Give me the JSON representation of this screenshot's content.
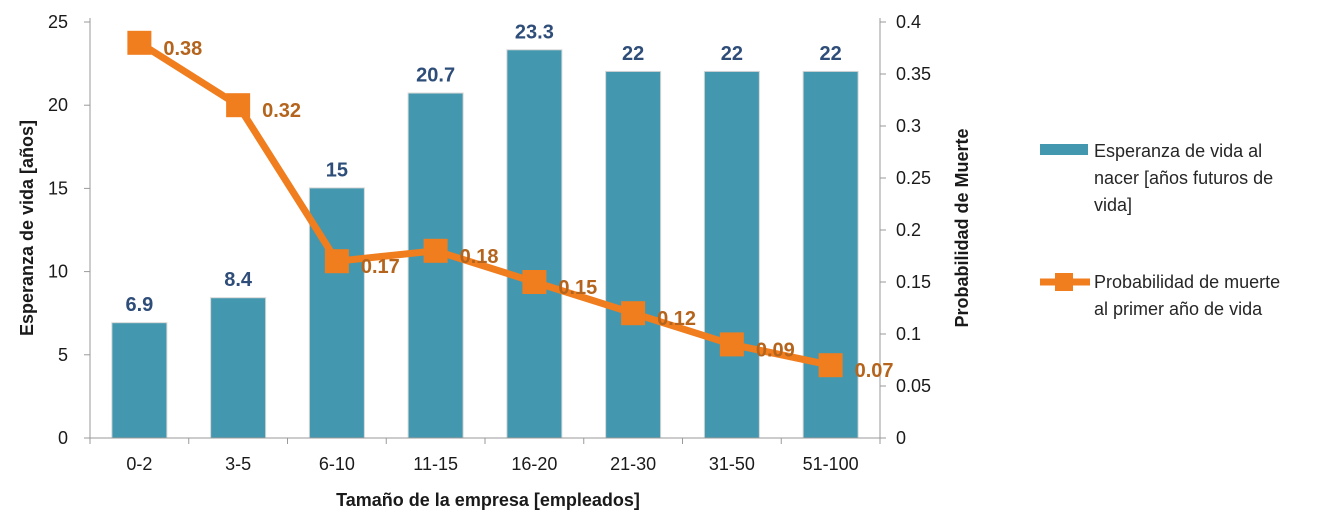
{
  "chart_data": {
    "type": "bar",
    "categories": [
      "0-2",
      "3-5",
      "6-10",
      "11-15",
      "16-20",
      "21-30",
      "31-50",
      "51-100"
    ],
    "series": [
      {
        "name": "Esperanza de vida al nacer [años futuros de vida]",
        "type": "bar",
        "axis": "left",
        "values": [
          6.9,
          8.4,
          15,
          20.7,
          23.3,
          22,
          22,
          22
        ],
        "labels": [
          "6.9",
          "8.4",
          "15",
          "20.7",
          "23.3",
          "22",
          "22",
          "22"
        ],
        "color": "#4398af"
      },
      {
        "name": "Probabilidad de muerte al primer año de vida",
        "type": "line",
        "axis": "right",
        "values": [
          0.38,
          0.32,
          0.17,
          0.18,
          0.15,
          0.12,
          0.09,
          0.07
        ],
        "labels": [
          "0.38",
          "0.32",
          "0.17",
          "0.18",
          "0.15",
          "0.12",
          "0.09",
          "0.07"
        ],
        "color": "#f07d1e"
      }
    ],
    "xlabel": "Tamaño de la empresa [empleados]",
    "ylabel": "Esperanza de vida [años]",
    "y2label": "Probabilidad de Muerte",
    "ylim": [
      0,
      25
    ],
    "y2lim": [
      0,
      0.4
    ],
    "yticks": [
      "0",
      "5",
      "10",
      "15",
      "20",
      "25"
    ],
    "y2ticks": [
      "0",
      "0.05",
      "0.1",
      "0.15",
      "0.2",
      "0.25",
      "0.3",
      "0.35",
      "0.4"
    ],
    "grid": false,
    "legend_position": "right",
    "bar_label_color": "#2e4d79",
    "line_label_color": "#b4641c"
  }
}
